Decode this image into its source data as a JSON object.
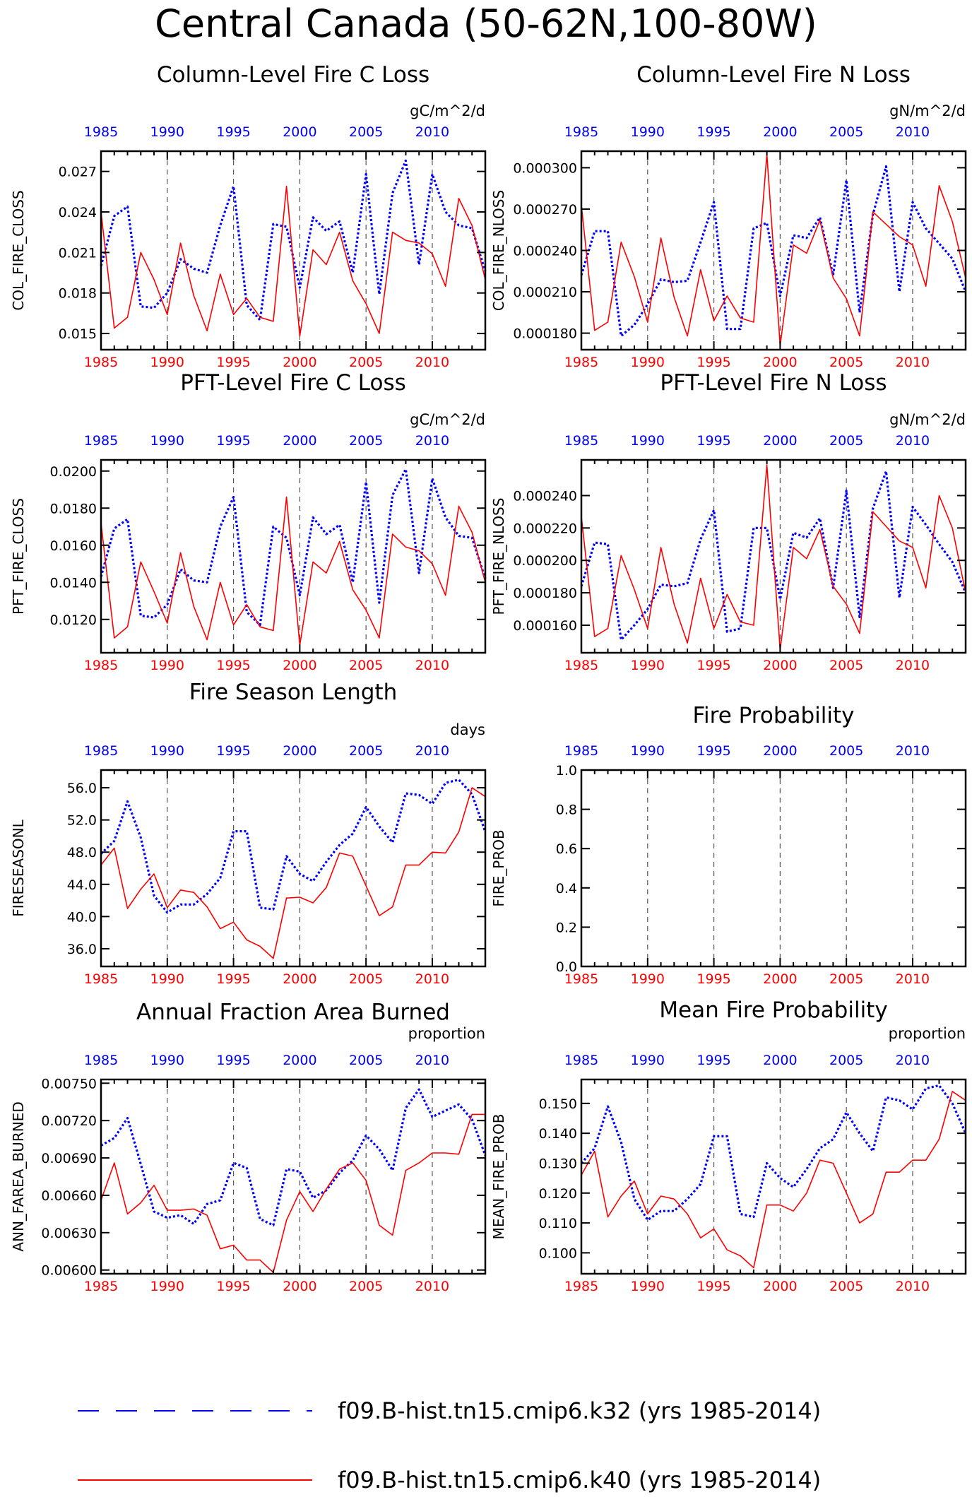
{
  "figure_title": "Central Canada (50-62N,100-80W)",
  "colors": {
    "series_a": "#0000ff",
    "series_b": "#ff0000",
    "axis": "#000000"
  },
  "legend": [
    {
      "label": "f09.B-hist.tn15.cmip6.k32 (yrs 1985-2014)",
      "color": "#0000ff",
      "style": "dashed"
    },
    {
      "label": "f09.B-hist.tn15.cmip6.k40 (yrs 1985-2014)",
      "color": "#ff0000",
      "style": "solid"
    }
  ],
  "chart_data": [
    {
      "type": "line",
      "title": "Column-Level Fire C Loss",
      "units": "gC/m^2/d",
      "ylabel": "COL_FIRE_CLOSS",
      "ylim": [
        0.0138,
        0.0285
      ],
      "yticks": [
        0.015,
        0.018,
        0.021,
        0.024,
        0.027
      ],
      "ytick_labels": [
        "0.015",
        "0.018",
        "0.021",
        "0.024",
        "0.027"
      ],
      "xlim": [
        1985,
        2014
      ],
      "xticks": [
        "1985",
        "1990",
        "1995",
        "2000",
        "2005",
        "2010"
      ],
      "grid": "dashed vertical lines at 1990, 1995, 2000, 2005, 2010",
      "x": [
        1985,
        1986,
        1987,
        1988,
        1989,
        1990,
        1991,
        1992,
        1993,
        1994,
        1995,
        1996,
        1997,
        1998,
        1999,
        2000,
        2001,
        2002,
        2003,
        2004,
        2005,
        2006,
        2007,
        2008,
        2009,
        2010,
        2011,
        2012,
        2013,
        2014
      ],
      "series": [
        {
          "values": [
            0.02,
            0.0237,
            0.0244,
            0.017,
            0.0169,
            0.018,
            0.0205,
            0.0198,
            0.0195,
            0.023,
            0.0259,
            0.0171,
            0.016,
            0.0231,
            0.0229,
            0.0184,
            0.0236,
            0.0226,
            0.0233,
            0.0195,
            0.0268,
            0.0179,
            0.0254,
            0.0278,
            0.0201,
            0.0268,
            0.024,
            0.023,
            0.0228,
            0.0196
          ]
        },
        {
          "values": [
            0.024,
            0.0154,
            0.0162,
            0.021,
            0.019,
            0.0164,
            0.0217,
            0.0178,
            0.0152,
            0.0194,
            0.0164,
            0.0176,
            0.0162,
            0.0159,
            0.0259,
            0.0148,
            0.0212,
            0.0201,
            0.0225,
            0.0189,
            0.0172,
            0.015,
            0.0225,
            0.0219,
            0.0217,
            0.0209,
            0.0185,
            0.025,
            0.023,
            0.019
          ]
        }
      ]
    },
    {
      "type": "line",
      "title": "Column-Level Fire N Loss",
      "units": "gN/m^2/d",
      "ylabel": "COL_FIRE_NLOSS",
      "ylim": [
        0.000168,
        0.000312
      ],
      "yticks": [
        0.00018,
        0.00021,
        0.00024,
        0.00027,
        0.0003
      ],
      "ytick_labels": [
        "0.000180",
        "0.000210",
        "0.000240",
        "0.000270",
        "0.000300"
      ],
      "xlim": [
        1985,
        2014
      ],
      "xticks": [
        "1985",
        "1990",
        "1995",
        "2000",
        "2005",
        "2010"
      ],
      "grid": "dashed vertical lines at 1990, 1995, 2000, 2005, 2010",
      "x": [
        1985,
        1986,
        1987,
        1988,
        1989,
        1990,
        1991,
        1992,
        1993,
        1994,
        1995,
        1996,
        1997,
        1998,
        1999,
        2000,
        2001,
        2002,
        2003,
        2004,
        2005,
        2006,
        2007,
        2008,
        2009,
        2010,
        2011,
        2012,
        2013,
        2014
      ],
      "series": [
        {
          "values": [
            0.000222,
            0.000254,
            0.000254,
            0.000178,
            0.000186,
            0.000201,
            0.000219,
            0.000217,
            0.000218,
            0.000246,
            0.000275,
            0.000183,
            0.000183,
            0.000256,
            0.00026,
            0.000207,
            0.000251,
            0.000249,
            0.000264,
            0.000222,
            0.000291,
            0.000195,
            0.000266,
            0.000301,
            0.00021,
            0.000275,
            0.000256,
            0.000245,
            0.000234,
            0.00021
          ]
        },
        {
          "values": [
            0.000273,
            0.000182,
            0.000188,
            0.000246,
            0.000221,
            0.000188,
            0.000249,
            0.000206,
            0.000178,
            0.000226,
            0.000189,
            0.000207,
            0.000191,
            0.000188,
            0.00031,
            0.000171,
            0.000244,
            0.000238,
            0.000262,
            0.00022,
            0.000205,
            0.000178,
            0.000268,
            0.000259,
            0.00025,
            0.000244,
            0.000214,
            0.000287,
            0.000261,
            0.00022
          ]
        }
      ]
    },
    {
      "type": "line",
      "title": "PFT-Level Fire C Loss",
      "units": "gC/m^2/d",
      "ylabel": "PFT_FIRE_CLOSS",
      "ylim": [
        0.0102,
        0.0206
      ],
      "yticks": [
        0.012,
        0.014,
        0.016,
        0.018,
        0.02
      ],
      "ytick_labels": [
        "0.0120",
        "0.0140",
        "0.0160",
        "0.0180",
        "0.0200"
      ],
      "xlim": [
        1985,
        2014
      ],
      "xticks": [
        "1985",
        "1990",
        "1995",
        "2000",
        "2005",
        "2010"
      ],
      "grid": "dashed vertical lines at 1990, 1995, 2000, 2005, 2010",
      "x": [
        1985,
        1986,
        1987,
        1988,
        1989,
        1990,
        1991,
        1992,
        1993,
        1994,
        1995,
        1996,
        1997,
        1998,
        1999,
        2000,
        2001,
        2002,
        2003,
        2004,
        2005,
        2006,
        2007,
        2008,
        2009,
        2010,
        2011,
        2012,
        2013,
        2014
      ],
      "series": [
        {
          "values": [
            0.0143,
            0.0169,
            0.0174,
            0.0122,
            0.0121,
            0.0128,
            0.0147,
            0.0141,
            0.014,
            0.017,
            0.0186,
            0.0124,
            0.0117,
            0.017,
            0.0164,
            0.0133,
            0.0175,
            0.0166,
            0.0171,
            0.014,
            0.0194,
            0.0129,
            0.0187,
            0.0201,
            0.0145,
            0.0196,
            0.0175,
            0.0165,
            0.0164,
            0.0142
          ]
        },
        {
          "values": [
            0.0172,
            0.011,
            0.0116,
            0.0151,
            0.0135,
            0.0118,
            0.0156,
            0.0127,
            0.0109,
            0.014,
            0.0117,
            0.0128,
            0.0116,
            0.0114,
            0.0186,
            0.0106,
            0.0151,
            0.0145,
            0.0162,
            0.0136,
            0.0125,
            0.011,
            0.0166,
            0.0159,
            0.0157,
            0.015,
            0.0133,
            0.0181,
            0.0167,
            0.014
          ]
        }
      ]
    },
    {
      "type": "line",
      "title": "PFT-Level Fire N Loss",
      "units": "gN/m^2/d",
      "ylabel": "PFT_FIRE_NLOSS",
      "ylim": [
        0.000143,
        0.000262
      ],
      "yticks": [
        0.00016,
        0.00018,
        0.0002,
        0.00022,
        0.00024
      ],
      "ytick_labels": [
        "0.000160",
        "0.000180",
        "0.000200",
        "0.000220",
        "0.000240"
      ],
      "xlim": [
        1985,
        2014
      ],
      "xticks": [
        "1985",
        "1990",
        "1995",
        "2000",
        "2005",
        "2010"
      ],
      "grid": "dashed vertical lines at 1990, 1995, 2000, 2005, 2010",
      "x": [
        1985,
        1986,
        1987,
        1988,
        1989,
        1990,
        1991,
        1992,
        1993,
        1994,
        1995,
        1996,
        1997,
        1998,
        1999,
        2000,
        2001,
        2002,
        2003,
        2004,
        2005,
        2006,
        2007,
        2008,
        2009,
        2010,
        2011,
        2012,
        2013,
        2014
      ],
      "series": [
        {
          "values": [
            0.000184,
            0.000211,
            0.00021,
            0.000151,
            0.00016,
            0.00017,
            0.000185,
            0.000184,
            0.000186,
            0.000213,
            0.000231,
            0.000156,
            0.000158,
            0.00022,
            0.00022,
            0.000176,
            0.000217,
            0.000214,
            0.000226,
            0.000183,
            0.000243,
            0.000165,
            0.000232,
            0.000255,
            0.000177,
            0.000233,
            0.000222,
            0.00021,
            0.000199,
            0.00018
          ]
        },
        {
          "values": [
            0.000227,
            0.000153,
            0.000158,
            0.000203,
            0.000182,
            0.000158,
            0.000208,
            0.000173,
            0.000149,
            0.000189,
            0.000158,
            0.000179,
            0.000162,
            0.00016,
            0.000259,
            0.000145,
            0.000208,
            0.000201,
            0.000219,
            0.000184,
            0.000173,
            0.000155,
            0.00023,
            0.000221,
            0.000212,
            0.000208,
            0.000183,
            0.00024,
            0.00022,
            0.00018
          ]
        }
      ]
    },
    {
      "type": "line",
      "title": "Fire Season Length",
      "units": "days",
      "ylabel": "FIRESEASONL",
      "ylim": [
        33.8,
        58.2
      ],
      "yticks": [
        36.0,
        40.0,
        44.0,
        48.0,
        52.0,
        56.0
      ],
      "ytick_labels": [
        "36.0",
        "40.0",
        "44.0",
        "48.0",
        "52.0",
        "56.0"
      ],
      "xlim": [
        1985,
        2014
      ],
      "xticks": [
        "1985",
        "1990",
        "1995",
        "2000",
        "2005",
        "2010"
      ],
      "grid": "dashed vertical lines at 1990, 1995, 2000, 2005, 2010",
      "x": [
        1985,
        1986,
        1987,
        1988,
        1989,
        1990,
        1991,
        1992,
        1993,
        1994,
        1995,
        1996,
        1997,
        1998,
        1999,
        2000,
        2001,
        2002,
        2003,
        2004,
        2005,
        2006,
        2007,
        2008,
        2009,
        2010,
        2011,
        2012,
        2013,
        2014
      ],
      "series": [
        {
          "values": [
            47.8,
            49.4,
            54.3,
            49.8,
            42.6,
            40.5,
            41.5,
            41.5,
            42.8,
            44.8,
            50.6,
            50.6,
            41.1,
            40.9,
            47.5,
            45.3,
            44.4,
            46.8,
            48.9,
            50.3,
            53.6,
            51.2,
            49.2,
            55.3,
            55.1,
            54.0,
            56.6,
            57.0,
            55.2,
            50.5
          ]
        },
        {
          "values": [
            46.4,
            48.5,
            41.0,
            43.4,
            45.3,
            41.1,
            43.3,
            43.0,
            41.2,
            38.5,
            39.3,
            37.1,
            36.3,
            34.8,
            42.3,
            42.4,
            41.7,
            43.6,
            47.9,
            47.5,
            43.8,
            40.1,
            41.2,
            46.4,
            46.4,
            48.0,
            47.9,
            50.5,
            56.0,
            54.9
          ]
        }
      ]
    },
    {
      "type": "line",
      "title": "Fire Probability",
      "units": "",
      "ylabel": "FIRE_PROB",
      "ylim": [
        0.0,
        1.0
      ],
      "yticks": [
        0.0,
        0.2,
        0.4,
        0.6,
        0.8,
        1.0
      ],
      "ytick_labels": [
        "0.0",
        "0.2",
        "0.4",
        "0.6",
        "0.8",
        "1.0"
      ],
      "xlim": [
        1985,
        2014
      ],
      "xticks": [
        "1985",
        "1990",
        "1995",
        "2000",
        "2005",
        "2010"
      ],
      "grid": "dashed vertical lines at 1990, 1995, 2000, 2005, 2010",
      "x": [],
      "series": []
    },
    {
      "type": "line",
      "title": "Annual Fraction Area Burned",
      "units": "proportion",
      "ylabel": "ANN_FAREA_BURNED",
      "ylim": [
        0.00597,
        0.00753
      ],
      "yticks": [
        0.006,
        0.0063,
        0.0066,
        0.0069,
        0.0072,
        0.0075
      ],
      "ytick_labels": [
        "0.00600",
        "0.00630",
        "0.00660",
        "0.00690",
        "0.00720",
        "0.00750"
      ],
      "xlim": [
        1985,
        2014
      ],
      "xticks": [
        "1985",
        "1990",
        "1995",
        "2000",
        "2005",
        "2010"
      ],
      "grid": "dashed vertical lines at 1990, 1995, 2000, 2005, 2010",
      "x": [
        1985,
        1986,
        1987,
        1988,
        1989,
        1990,
        1991,
        1992,
        1993,
        1994,
        1995,
        1996,
        1997,
        1998,
        1999,
        2000,
        2001,
        2002,
        2003,
        2004,
        2005,
        2006,
        2007,
        2008,
        2009,
        2010,
        2011,
        2012,
        2013,
        2014
      ],
      "series": [
        {
          "values": [
            0.007,
            0.00706,
            0.00722,
            0.00685,
            0.00647,
            0.00642,
            0.00644,
            0.00637,
            0.00653,
            0.00656,
            0.00686,
            0.00682,
            0.00641,
            0.00636,
            0.00681,
            0.00679,
            0.00658,
            0.00664,
            0.00678,
            0.00688,
            0.00708,
            0.00697,
            0.0068,
            0.0073,
            0.00745,
            0.00723,
            0.00728,
            0.00733,
            0.00721,
            0.00692
          ]
        },
        {
          "values": [
            0.00656,
            0.00686,
            0.00645,
            0.00654,
            0.00668,
            0.00648,
            0.00648,
            0.00649,
            0.00644,
            0.00617,
            0.0062,
            0.00608,
            0.00608,
            0.00598,
            0.0064,
            0.00663,
            0.00647,
            0.00665,
            0.00681,
            0.00686,
            0.00672,
            0.00636,
            0.00628,
            0.0068,
            0.00686,
            0.00694,
            0.00694,
            0.00693,
            0.00725,
            0.00725
          ]
        }
      ]
    },
    {
      "type": "line",
      "title": "Mean Fire Probability",
      "units": "proportion",
      "ylabel": "MEAN_FIRE_PROB",
      "ylim": [
        0.093,
        0.158
      ],
      "yticks": [
        0.1,
        0.11,
        0.12,
        0.13,
        0.14,
        0.15
      ],
      "ytick_labels": [
        "0.100",
        "0.110",
        "0.120",
        "0.130",
        "0.140",
        "0.150"
      ],
      "xlim": [
        1985,
        2014
      ],
      "xticks": [
        "1985",
        "1990",
        "1995",
        "2000",
        "2005",
        "2010"
      ],
      "grid": "dashed vertical lines at 1990, 1995, 2000, 2005, 2010",
      "x": [
        1985,
        1986,
        1987,
        1988,
        1989,
        1990,
        1991,
        1992,
        1993,
        1994,
        1995,
        1996,
        1997,
        1998,
        1999,
        2000,
        2001,
        2002,
        2003,
        2004,
        2005,
        2006,
        2007,
        2008,
        2009,
        2010,
        2011,
        2012,
        2013,
        2014
      ],
      "series": [
        {
          "values": [
            0.13,
            0.135,
            0.149,
            0.137,
            0.118,
            0.111,
            0.114,
            0.114,
            0.118,
            0.123,
            0.139,
            0.139,
            0.113,
            0.112,
            0.13,
            0.125,
            0.122,
            0.128,
            0.135,
            0.138,
            0.147,
            0.14,
            0.134,
            0.152,
            0.151,
            0.148,
            0.155,
            0.156,
            0.15,
            0.14
          ]
        },
        {
          "values": [
            0.126,
            0.134,
            0.112,
            0.119,
            0.124,
            0.113,
            0.119,
            0.118,
            0.113,
            0.105,
            0.108,
            0.101,
            0.099,
            0.095,
            0.116,
            0.116,
            0.114,
            0.12,
            0.131,
            0.13,
            0.12,
            0.11,
            0.113,
            0.127,
            0.127,
            0.131,
            0.131,
            0.138,
            0.154,
            0.151
          ]
        }
      ]
    }
  ]
}
